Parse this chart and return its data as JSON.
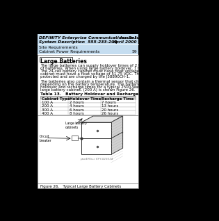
{
  "header_bg": "#c5ddf0",
  "header_line1": "DEFINITY Enterprise Communications Server Release 8.2",
  "header_line1_right": "Issue 1",
  "header_line2": "System Description  555-233-200",
  "header_line2_right": "April 2000",
  "header_line3": "Site Requirements",
  "header_line4": "Cabinet Power Requirements",
  "header_line4_right": "59",
  "section_title": "Large Batteries",
  "para1_lines": [
    "The large batteries can supply holdover times of 2 to 8 hours, depending on the number",
    "of batteries. When using large battery holdover, 1 battery cabinet is required per system.",
    "The 24-cell battery cabinet must have float voltage of 54.2 VDC. The 23-cell battery",
    "cabinet must have a float voltage of 51.75 VDC. The batteries are circuit breaker",
    "protected and are charged by the J58890CH-1."
  ],
  "para2_lines": [
    "The batteries also contain a thermal sensor that changes the charging voltage,",
    "depending on the battery temperature. The batteries provide extended holdover. Battery",
    "holdover and recharge times for a typical 2500-Watt load are shown in Table 13. A typical",
    "large battery cabinet, (200 A) is shown Figure 26."
  ],
  "table_title": "Table 13.   Battery Holdover and Recharge Times",
  "table_headers": [
    "Cabinet Type",
    "Holdover Time",
    "Recharge Time"
  ],
  "table_rows": [
    [
      "100 A",
      "2 hours",
      "7 hours"
    ],
    [
      "200 A",
      "4 hours",
      "13 hours"
    ],
    [
      "300 A",
      "6 hours",
      "20 hours"
    ],
    [
      "400 A",
      "8 hours",
      "26 hours"
    ]
  ],
  "figure_caption": "Figure 26.   Typical Large Battery Cabinets",
  "figure_watermark": "pax499a-c KPY-023034",
  "label_large_battery": "Large battery\ncabinets",
  "label_circuit_breaker": "Circuit\nbreaker",
  "page_bg": "#000000",
  "content_bg": "#ffffff",
  "table_header_bg": "#d0d0d0",
  "border_color": "#666666"
}
